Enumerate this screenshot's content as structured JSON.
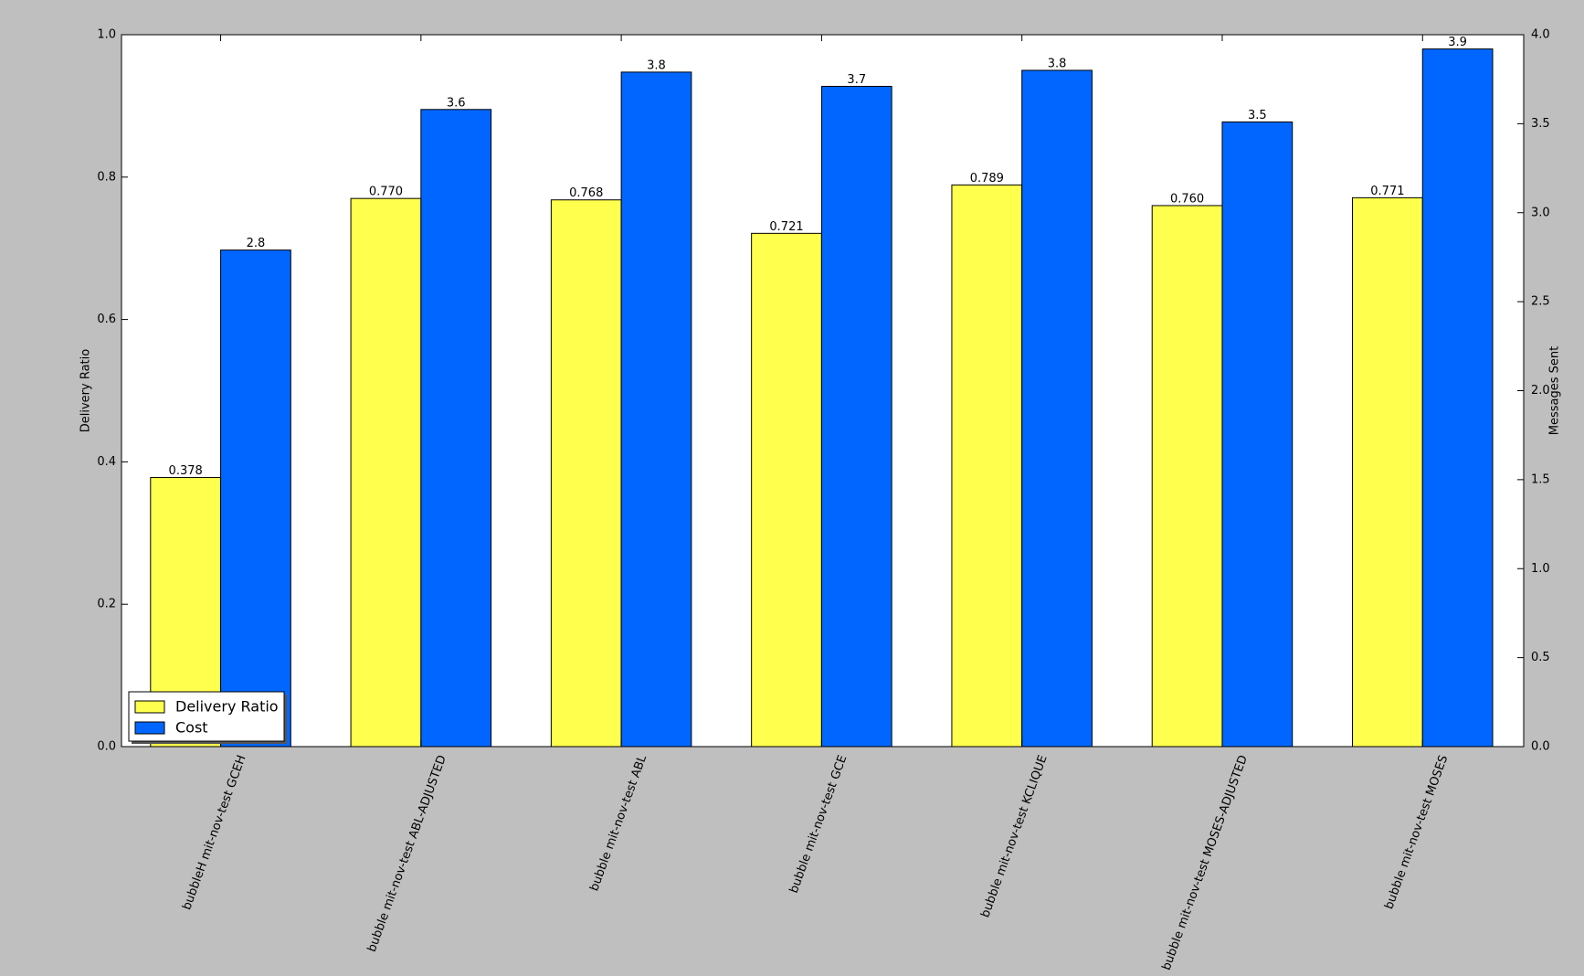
{
  "chart_data": {
    "type": "bar",
    "categories": [
      "bubbleH mit-nov-test GCEH",
      "bubble mit-nov-test ABL-ADJUSTED",
      "bubble mit-nov-test ABL",
      "bubble mit-nov-test GCE",
      "bubble mit-nov-test KCLIQUE",
      "bubble mit-nov-test MOSES-ADJUSTED",
      "bubble mit-nov-test MOSES"
    ],
    "series": [
      {
        "name": "Delivery Ratio",
        "color": "#ffff4d",
        "values": [
          0.378,
          0.77,
          0.768,
          0.721,
          0.789,
          0.76,
          0.771
        ],
        "value_labels": [
          "0.378",
          "0.770",
          "0.768",
          "0.721",
          "0.789",
          "0.760",
          "0.771"
        ]
      },
      {
        "name": "Cost",
        "color": "#0066ff",
        "axis": "y2",
        "values": [
          2.79,
          3.58,
          3.79,
          3.71,
          3.8,
          3.51,
          3.92
        ],
        "value_labels": [
          "2.8",
          "3.6",
          "3.8",
          "3.7",
          "3.8",
          "3.5",
          "3.9"
        ]
      }
    ],
    "ylabel": "Delivery Ratio",
    "y2label": "Messages Sent",
    "ylim": [
      0,
      1
    ],
    "yticks": [
      {
        "value": 0,
        "label": "0.0"
      },
      0.2,
      0.4,
      0.6,
      0.8,
      {
        "value": 1,
        "label": "1.0"
      }
    ],
    "y2lim": [
      0,
      4
    ],
    "y2ticks": [
      {
        "value": 0,
        "label": "0.0"
      },
      0.5,
      {
        "value": 1,
        "label": "1.0"
      },
      1.5,
      {
        "value": 2,
        "label": "2.0"
      },
      2.5,
      {
        "value": 3,
        "label": "3.0"
      },
      3.5,
      {
        "value": 4,
        "label": "4.0"
      }
    ],
    "grid": false,
    "legend": "lower left"
  }
}
